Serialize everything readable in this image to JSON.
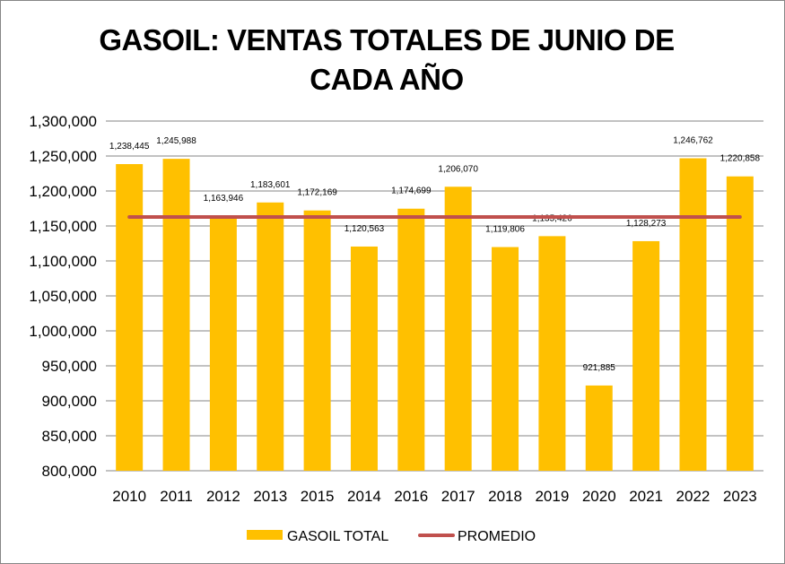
{
  "chart_data": {
    "type": "bar",
    "title": "GASOIL: VENTAS TOTALES DE JUNIO DE CADA AÑO",
    "xlabel": "",
    "ylabel": "",
    "ylim": [
      800000,
      1300000
    ],
    "yticks": [
      800000,
      850000,
      900000,
      950000,
      1000000,
      1050000,
      1100000,
      1150000,
      1200000,
      1250000,
      1300000
    ],
    "ytick_labels": [
      "800,000",
      "850,000",
      "900,000",
      "950,000",
      "1,000,000",
      "1,050,000",
      "1,100,000",
      "1,150,000",
      "1,200,000",
      "1,250,000",
      "1,300,000"
    ],
    "grid": true,
    "legend_position": "bottom",
    "categories": [
      "2010",
      "2011",
      "2012",
      "2013",
      "2015",
      "2014",
      "2016",
      "2017",
      "2018",
      "2019",
      "2020",
      "2021",
      "2022",
      "2023"
    ],
    "series": [
      {
        "name": "GASOIL TOTAL",
        "type": "bar",
        "color": "#FFC000",
        "values": [
          1238445,
          1245988,
          1163946,
          1183601,
          1172169,
          1120563,
          1174699,
          1206070,
          1119806,
          1135426,
          921885,
          1128273,
          1246762,
          1220858
        ],
        "labels": [
          "1,238,445",
          "1,245,988",
          "1,163,946",
          "1,183,601",
          "1,172,169",
          "1,120,563",
          "1,174,699",
          "1,206,070",
          "1,119,806",
          "1,135,426",
          "921,885",
          "1,128,273",
          "1,246,762",
          "1,220,858"
        ]
      },
      {
        "name": "PROMEDIO",
        "type": "line",
        "color": "#C0504D",
        "value": 1162749
      }
    ]
  }
}
